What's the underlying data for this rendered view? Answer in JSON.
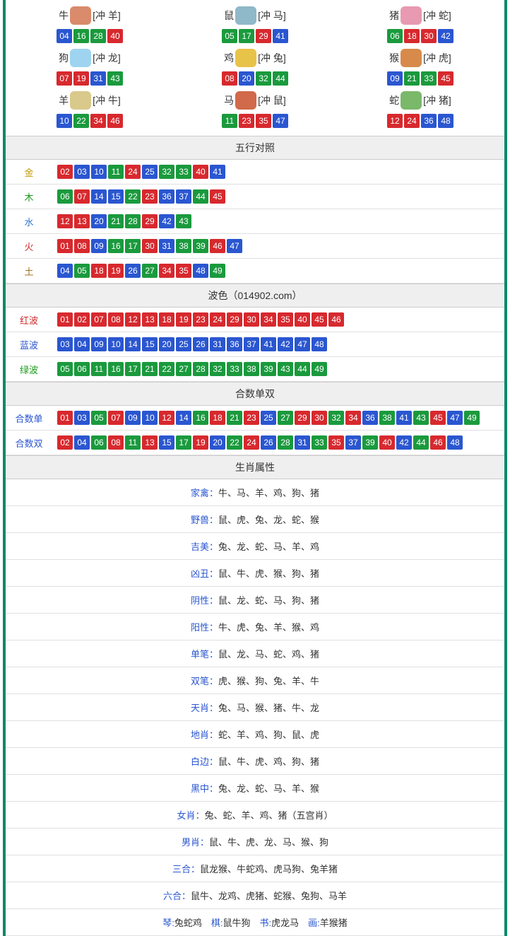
{
  "colors": {
    "red": "#d7292e",
    "blue": "#2a56d0",
    "green": "#1a9a3d",
    "border": "#0a8a6a"
  },
  "ball_color_map": {
    "red": [
      "01",
      "02",
      "07",
      "08",
      "12",
      "13",
      "18",
      "19",
      "23",
      "24",
      "29",
      "30",
      "34",
      "35",
      "40",
      "45",
      "46"
    ],
    "blue": [
      "03",
      "04",
      "09",
      "10",
      "14",
      "15",
      "20",
      "25",
      "26",
      "31",
      "36",
      "37",
      "41",
      "42",
      "47",
      "48"
    ],
    "green": [
      "05",
      "06",
      "11",
      "16",
      "17",
      "21",
      "22",
      "27",
      "28",
      "32",
      "33",
      "38",
      "39",
      "43",
      "44",
      "49"
    ]
  },
  "zodiac": [
    {
      "name": "牛",
      "conflict": "[冲 羊]",
      "icon_bg": "#d98b6b",
      "numbers": [
        "04",
        "16",
        "28",
        "40"
      ]
    },
    {
      "name": "鼠",
      "conflict": "[冲 马]",
      "icon_bg": "#8fb8c8",
      "numbers": [
        "05",
        "17",
        "29",
        "41"
      ]
    },
    {
      "name": "猪",
      "conflict": "[冲 蛇]",
      "icon_bg": "#e79ab0",
      "numbers": [
        "06",
        "18",
        "30",
        "42"
      ]
    },
    {
      "name": "狗",
      "conflict": "[冲 龙]",
      "icon_bg": "#9fd4f0",
      "numbers": [
        "07",
        "19",
        "31",
        "43"
      ]
    },
    {
      "name": "鸡",
      "conflict": "[冲 兔]",
      "icon_bg": "#e8c34a",
      "numbers": [
        "08",
        "20",
        "32",
        "44"
      ]
    },
    {
      "name": "猴",
      "conflict": "[冲 虎]",
      "icon_bg": "#d78a4a",
      "numbers": [
        "09",
        "21",
        "33",
        "45"
      ]
    },
    {
      "name": "羊",
      "conflict": "[冲 牛]",
      "icon_bg": "#d9c98a",
      "numbers": [
        "10",
        "22",
        "34",
        "46"
      ]
    },
    {
      "name": "马",
      "conflict": "[冲 鼠]",
      "icon_bg": "#d06a4a",
      "numbers": [
        "11",
        "23",
        "35",
        "47"
      ]
    },
    {
      "name": "蛇",
      "conflict": "[冲 猪]",
      "icon_bg": "#7ab86a",
      "numbers": [
        "12",
        "24",
        "36",
        "48"
      ]
    }
  ],
  "sections": {
    "wuxing": {
      "title": "五行对照",
      "rows": [
        {
          "label": "金",
          "class": "c-金",
          "numbers": [
            "02",
            "03",
            "10",
            "11",
            "24",
            "25",
            "32",
            "33",
            "40",
            "41"
          ]
        },
        {
          "label": "木",
          "class": "c-木",
          "numbers": [
            "06",
            "07",
            "14",
            "15",
            "22",
            "23",
            "36",
            "37",
            "44",
            "45"
          ]
        },
        {
          "label": "水",
          "class": "c-水",
          "numbers": [
            "12",
            "13",
            "20",
            "21",
            "28",
            "29",
            "42",
            "43"
          ]
        },
        {
          "label": "火",
          "class": "c-火",
          "numbers": [
            "01",
            "08",
            "09",
            "16",
            "17",
            "30",
            "31",
            "38",
            "39",
            "46",
            "47"
          ]
        },
        {
          "label": "土",
          "class": "c-土",
          "numbers": [
            "04",
            "05",
            "18",
            "19",
            "26",
            "27",
            "34",
            "35",
            "48",
            "49"
          ]
        }
      ]
    },
    "bose": {
      "title": "波色（014902.com）",
      "rows": [
        {
          "label": "红波",
          "class": "c-红波",
          "numbers": [
            "01",
            "02",
            "07",
            "08",
            "12",
            "13",
            "18",
            "19",
            "23",
            "24",
            "29",
            "30",
            "34",
            "35",
            "40",
            "45",
            "46"
          ]
        },
        {
          "label": "蓝波",
          "class": "c-蓝波",
          "numbers": [
            "03",
            "04",
            "09",
            "10",
            "14",
            "15",
            "20",
            "25",
            "26",
            "31",
            "36",
            "37",
            "41",
            "42",
            "47",
            "48"
          ]
        },
        {
          "label": "绿波",
          "class": "c-绿波",
          "numbers": [
            "05",
            "06",
            "11",
            "16",
            "17",
            "21",
            "22",
            "27",
            "28",
            "32",
            "33",
            "38",
            "39",
            "43",
            "44",
            "49"
          ]
        }
      ]
    },
    "heshu": {
      "title": "合数单双",
      "rows": [
        {
          "label": "合数单",
          "class": "c-合数单",
          "numbers": [
            "01",
            "03",
            "05",
            "07",
            "09",
            "10",
            "12",
            "14",
            "16",
            "18",
            "21",
            "23",
            "25",
            "27",
            "29",
            "30",
            "32",
            "34",
            "36",
            "38",
            "41",
            "43",
            "45",
            "47",
            "49"
          ]
        },
        {
          "label": "合数双",
          "class": "c-合数双",
          "numbers": [
            "02",
            "04",
            "06",
            "08",
            "11",
            "13",
            "15",
            "17",
            "19",
            "20",
            "22",
            "24",
            "26",
            "28",
            "31",
            "33",
            "35",
            "37",
            "39",
            "40",
            "42",
            "44",
            "46",
            "48"
          ]
        }
      ]
    },
    "attrs": {
      "title": "生肖属性",
      "rows": [
        {
          "label": "家禽：",
          "value": "牛、马、羊、鸡、狗、猪"
        },
        {
          "label": "野兽：",
          "value": "鼠、虎、兔、龙、蛇、猴"
        },
        {
          "label": "吉美：",
          "value": "兔、龙、蛇、马、羊、鸡"
        },
        {
          "label": "凶丑：",
          "value": "鼠、牛、虎、猴、狗、猪"
        },
        {
          "label": "阴性：",
          "value": "鼠、龙、蛇、马、狗、猪"
        },
        {
          "label": "阳性：",
          "value": "牛、虎、兔、羊、猴、鸡"
        },
        {
          "label": "单笔：",
          "value": "鼠、龙、马、蛇、鸡、猪"
        },
        {
          "label": "双笔：",
          "value": "虎、猴、狗、兔、羊、牛"
        },
        {
          "label": "天肖：",
          "value": "兔、马、猴、猪、牛、龙"
        },
        {
          "label": "地肖：",
          "value": "蛇、羊、鸡、狗、鼠、虎"
        },
        {
          "label": "白边：",
          "value": "鼠、牛、虎、鸡、狗、猪"
        },
        {
          "label": "黑中：",
          "value": "兔、龙、蛇、马、羊、猴"
        },
        {
          "label": "女肖：",
          "value": "兔、蛇、羊、鸡、猪（五宫肖）"
        },
        {
          "label": "男肖：",
          "value": "鼠、牛、虎、龙、马、猴、狗"
        },
        {
          "label": "三合：",
          "value": "鼠龙猴、牛蛇鸡、虎马狗、兔羊猪"
        },
        {
          "label": "六合：",
          "value": "鼠牛、龙鸡、虎猪、蛇猴、兔狗、马羊"
        },
        {
          "label": "",
          "value": "琴:兔蛇鸡　棋:鼠牛狗　书:虎龙马　画:羊猴猪",
          "labels4": [
            {
              "k": "琴:",
              "v": "兔蛇鸡"
            },
            {
              "k": "棋:",
              "v": "鼠牛狗"
            },
            {
              "k": "书:",
              "v": "虎龙马"
            },
            {
              "k": "画:",
              "v": "羊猴猪"
            }
          ]
        }
      ]
    }
  }
}
